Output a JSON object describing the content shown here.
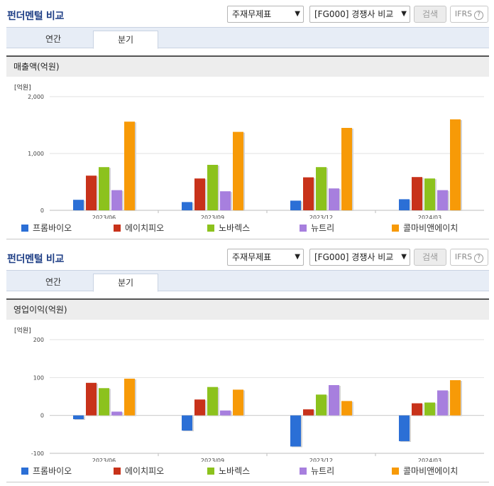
{
  "colors": [
    "#2b6fd6",
    "#c8321a",
    "#8cc21d",
    "#a77fde",
    "#f79a07"
  ],
  "companies": [
    "프롬바이오",
    "에이치피오",
    "노바렉스",
    "뉴트리",
    "콜마비앤에이치"
  ],
  "panels": [
    {
      "title": "펀더멘털 비교",
      "select1": "주재무제표",
      "select2": "[FG000] 경쟁사 비교",
      "search_label": "검색",
      "ifrs_label": "IFRS",
      "help_label": "?",
      "tabs": [
        "연간",
        "분기"
      ],
      "active_tab": "분기",
      "metric_label": "매출액(억원)"
    },
    {
      "title": "펀더멘털 비교",
      "select1": "주재무제표",
      "select2": "[FG000] 경쟁사 비교",
      "search_label": "검색",
      "ifrs_label": "IFRS",
      "help_label": "?",
      "tabs": [
        "연간",
        "분기"
      ],
      "active_tab": "분기",
      "metric_label": "영업이익(억원)"
    }
  ],
  "chart_data": [
    {
      "type": "bar",
      "unit_label": "[억원]",
      "categories": [
        "2023/06",
        "2023/09",
        "2023/12",
        "2024/03"
      ],
      "ylim": [
        0,
        2000
      ],
      "yticks": [
        0,
        1000,
        2000
      ],
      "ytick_labels": [
        "0",
        "1,000",
        "2,000"
      ],
      "grid": true,
      "legend": "bottom",
      "series": [
        {
          "name": "프롬바이오",
          "values": [
            185,
            145,
            170,
            195
          ]
        },
        {
          "name": "에이치피오",
          "values": [
            610,
            560,
            580,
            585
          ]
        },
        {
          "name": "노바렉스",
          "values": [
            760,
            800,
            760,
            560
          ]
        },
        {
          "name": "뉴트리",
          "values": [
            355,
            335,
            385,
            355
          ]
        },
        {
          "name": "콜마비앤에이치",
          "values": [
            1560,
            1380,
            1450,
            1600
          ]
        }
      ]
    },
    {
      "type": "bar",
      "unit_label": "[억원]",
      "categories": [
        "2023/06",
        "2023/09",
        "2023/12",
        "2024/03"
      ],
      "ylim": [
        -100,
        200
      ],
      "yticks": [
        -100,
        0,
        100,
        200
      ],
      "ytick_labels": [
        "-100",
        "0",
        "100",
        "200"
      ],
      "grid": true,
      "legend": "bottom",
      "series": [
        {
          "name": "프롬바이오",
          "values": [
            -10,
            -40,
            -82,
            -68
          ]
        },
        {
          "name": "에이치피오",
          "values": [
            86,
            42,
            16,
            32
          ]
        },
        {
          "name": "노바렉스",
          "values": [
            72,
            75,
            55,
            34
          ]
        },
        {
          "name": "뉴트리",
          "values": [
            10,
            13,
            80,
            66
          ]
        },
        {
          "name": "콜마비앤에이치",
          "values": [
            97,
            68,
            38,
            93
          ]
        }
      ]
    }
  ]
}
